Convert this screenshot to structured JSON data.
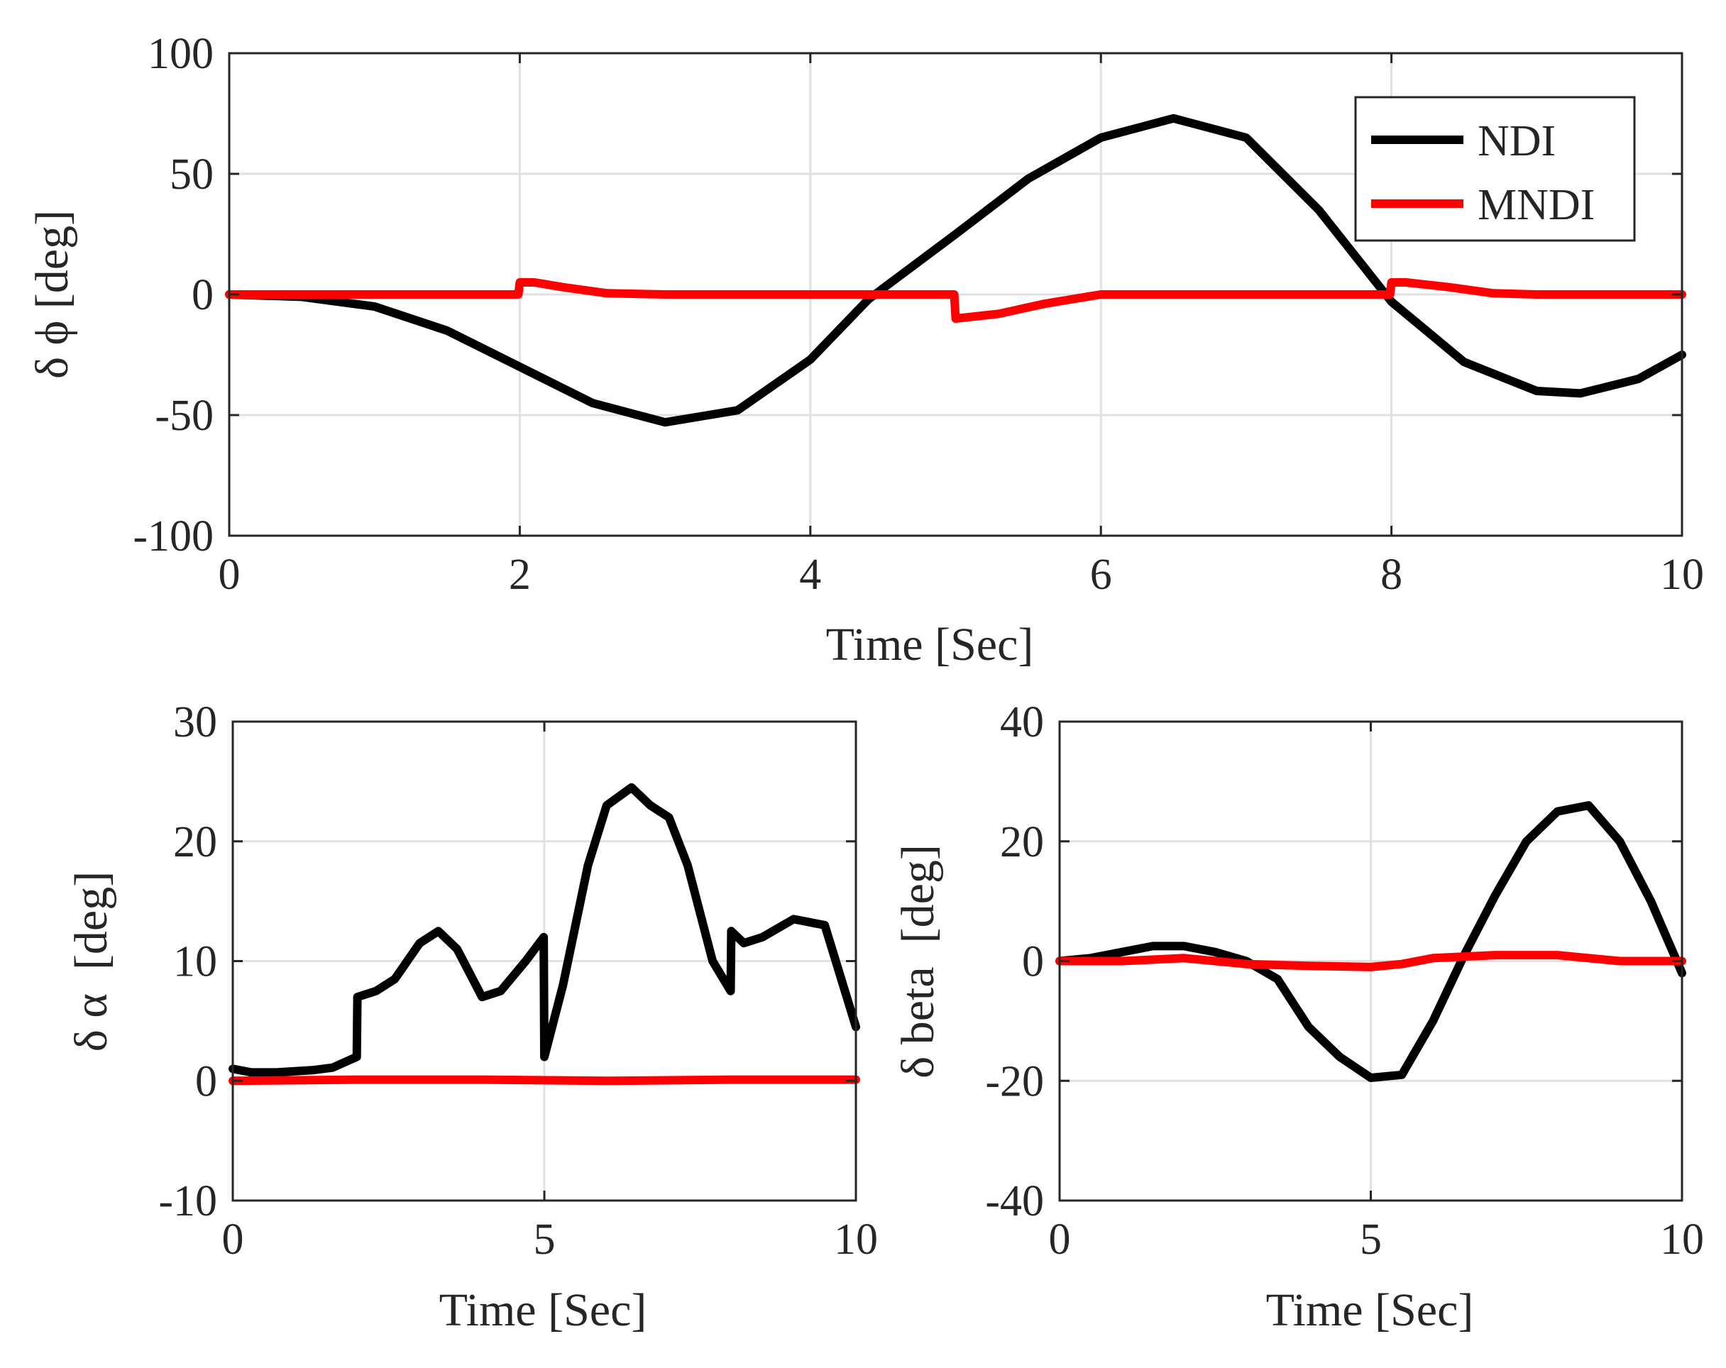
{
  "chart_data": [
    {
      "type": "line",
      "id": "roll",
      "xlabel": "Time  [Sec]",
      "ylabel": "δ ϕ [deg]",
      "xlim": [
        0,
        10
      ],
      "ylim": [
        -100,
        100
      ],
      "xticks": [
        0,
        2,
        4,
        6,
        8,
        10
      ],
      "yticks": [
        -100,
        -50,
        0,
        50,
        100
      ],
      "grid": true,
      "legend": {
        "location": "top-right",
        "entries": [
          "NDI",
          "MNDI"
        ]
      },
      "series": [
        {
          "name": "NDI",
          "color": "#000000",
          "x": [
            0,
            0.5,
            1,
            1.5,
            2,
            2.5,
            3,
            3.5,
            4,
            4.4,
            5,
            5.5,
            6,
            6.5,
            7,
            7.5,
            8,
            8.5,
            9,
            9.3,
            9.7,
            10
          ],
          "y": [
            0,
            -1,
            -5,
            -15,
            -30,
            -45,
            -53,
            -48,
            -27,
            -2,
            25,
            48,
            65,
            73,
            65,
            35,
            -3,
            -28,
            -40,
            -41,
            -35,
            -25
          ]
        },
        {
          "name": "MNDI",
          "color": "#ff0000",
          "x": [
            0,
            1.99,
            2.0,
            2.1,
            2.3,
            2.6,
            3,
            4,
            4.99,
            5.0,
            5.3,
            5.6,
            6,
            7,
            7.99,
            8.0,
            8.1,
            8.4,
            8.7,
            9,
            10
          ],
          "y": [
            0,
            0,
            5,
            5,
            3,
            0.5,
            0,
            0,
            0,
            -10,
            -8,
            -4,
            0,
            0,
            0,
            5,
            5,
            3,
            0.5,
            0,
            0
          ]
        }
      ]
    },
    {
      "type": "line",
      "id": "alpha",
      "xlabel": "Time  [Sec]",
      "ylabel": "δ α  [deg]",
      "xlim": [
        0,
        10
      ],
      "ylim": [
        -10,
        30
      ],
      "xticks": [
        0,
        5,
        10
      ],
      "yticks": [
        -10,
        0,
        10,
        20,
        30
      ],
      "grid": true,
      "series": [
        {
          "name": "NDI",
          "color": "#000000",
          "x": [
            0,
            0.3,
            0.7,
            1,
            1.3,
            1.6,
            1.99,
            2.0,
            2.3,
            2.6,
            3,
            3.3,
            3.6,
            4,
            4.3,
            4.7,
            4.99,
            5.0,
            5.3,
            5.7,
            6,
            6.4,
            6.7,
            7,
            7.3,
            7.7,
            7.99,
            8.0,
            8.2,
            8.5,
            9,
            9.5,
            10
          ],
          "y": [
            1,
            0.7,
            0.7,
            0.8,
            0.9,
            1.1,
            2,
            7,
            7.5,
            8.5,
            11.5,
            12.5,
            11,
            7,
            7.5,
            10,
            12,
            2,
            8,
            18,
            23,
            24.5,
            23,
            22,
            18,
            10,
            7.5,
            12.5,
            11.5,
            12,
            13.5,
            13,
            4.5
          ]
        },
        {
          "name": "MNDI",
          "color": "#ff0000",
          "x": [
            0,
            2,
            4,
            6,
            8,
            10
          ],
          "y": [
            0,
            0.1,
            0.1,
            0,
            0.1,
            0.1
          ]
        }
      ]
    },
    {
      "type": "line",
      "id": "beta",
      "xlabel": "Time  [Sec]",
      "ylabel": "δ beta  [deg]",
      "xlim": [
        0,
        10
      ],
      "ylim": [
        -40,
        40
      ],
      "xticks": [
        0,
        5,
        10
      ],
      "yticks": [
        -40,
        -20,
        0,
        20,
        40
      ],
      "grid": true,
      "series": [
        {
          "name": "NDI",
          "color": "#000000",
          "x": [
            0,
            0.5,
            1,
            1.5,
            2,
            2.5,
            3,
            3.5,
            4,
            4.5,
            5,
            5.5,
            6,
            6.5,
            7,
            7.5,
            8,
            8.5,
            9,
            9.5,
            10
          ],
          "y": [
            0,
            0.5,
            1.5,
            2.5,
            2.5,
            1.5,
            0,
            -3,
            -11,
            -16,
            -19.5,
            -19,
            -10,
            1,
            11,
            20,
            25,
            26,
            20,
            10,
            -2
          ]
        },
        {
          "name": "MNDI",
          "color": "#ff0000",
          "x": [
            0,
            1,
            2,
            3,
            4,
            5,
            5.5,
            6,
            7,
            8,
            8.5,
            9,
            10
          ],
          "y": [
            0,
            0,
            0.5,
            -0.5,
            -0.8,
            -1,
            -0.5,
            0.5,
            1,
            1,
            0.5,
            0,
            0
          ]
        }
      ]
    }
  ]
}
